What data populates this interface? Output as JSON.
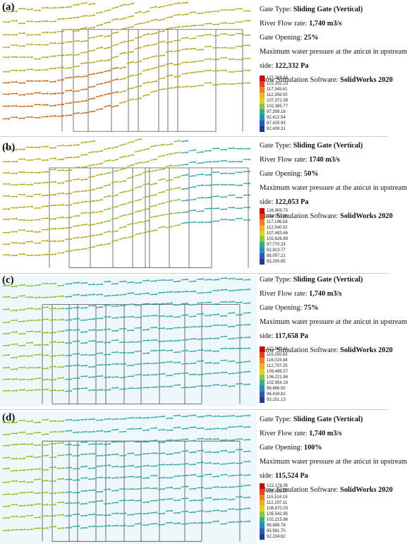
{
  "panels": [
    {
      "letter": "(a)",
      "gate_type_label": "Gate Type: ",
      "gate_type": "Sliding Gate (Vertical)",
      "flow_label": "River Flow rate: ",
      "flow": "1,740 m3/s",
      "opening_label": "Gate Opening: ",
      "opening": "25%",
      "pressure_label_1": "Maximum water pressure at the anicut in upstream",
      "pressure_label_2": "side: ",
      "pressure": "122,332 Pa",
      "software_label": "Flow Simulation Software: ",
      "software": "SolidWorks 2020",
      "legend": [
        "127,318.84",
        "122,332.23",
        "117,345.61",
        "112,359.00",
        "107,372.39",
        "102,385.77",
        "97,399.16",
        "92,412.54",
        "87,425.93",
        "82,439.31"
      ],
      "palette": "warm"
    },
    {
      "letter": "(b)",
      "gate_type_label": "Gate Type: ",
      "gate_type": "Sliding Gate (Vertical)",
      "flow_label": "River Flow rate: ",
      "flow": "1740 m3/s",
      "opening_label": "Gate Opening: ",
      "opening": "50%",
      "pressure_label_1": "Maximum water pressure at the anicut in upstream",
      "pressure_label_2": "side: ",
      "pressure": "122,053 Pa",
      "software_label": "Flow Simulation Software: ",
      "software": "SolidWorks 2020",
      "legend": [
        "126,909.70",
        "122,053.14",
        "117,196.58",
        "112,340.02",
        "107,483.46",
        "102,626.89",
        "97,770.33",
        "92,913.77",
        "88,057.21",
        "83,200.65"
      ],
      "palette": "mid"
    },
    {
      "letter": "(c)",
      "gate_type_label": "Gate Type: ",
      "gate_type": "Sliding Gate (Vertical)",
      "flow_label": "River Flow rate: ",
      "flow": "1,740 m3/s",
      "opening_label": "Gate Opening: ",
      "opening": "75%",
      "pressure_label_1": "Maximum water pressure at the anicut in upstream",
      "pressure_label_2": "side: ",
      "pressure": "117,658 Pa",
      "software_label": "Flow Simulation Software: ",
      "software": "SolidWorks 2020",
      "legend": [
        "122,560.31",
        "119,292.63",
        "116,024.94",
        "112,757.25",
        "109,489.57",
        "106,221.88",
        "102,954.19",
        "99,686.50",
        "96,418.82",
        "93,151.13"
      ],
      "palette": "cool"
    },
    {
      "letter": "(d)",
      "gate_type_label": "Gate Type: ",
      "gate_type": "Sliding Gate (Vertical)",
      "flow_label": "River Flow rate: ",
      "flow": "1,740 m3/s",
      "opening_label": "Gate Opening: ",
      "opening": "100%",
      "pressure_label_1": "Maximum water pressure at the anicut in upstream",
      "pressure_label_2": "side: ",
      "pressure": "115,524 Pa",
      "software_label": "Flow Simulation Software: ",
      "software": "SolidWorks 2020",
      "legend": [
        "122,178.35",
        "118,851.27",
        "115,524.19",
        "112,197.11",
        "108,870.03",
        "105,542.95",
        "102,215.86",
        "98,888.78",
        "95,561.70",
        "92,234.62"
      ],
      "palette": "cool"
    }
  ],
  "legend_colors": [
    "#d40000",
    "#ef3b1a",
    "#f57c1f",
    "#f2b21e",
    "#d8d61e",
    "#86c83a",
    "#29b08c",
    "#1f8fc6",
    "#2e58b8",
    "#243a9a"
  ],
  "colors": {
    "warm_arrow": "#b8a81c",
    "warm_arrow_hot": "#d06a1a",
    "mid_arrow": "#8fbf2a",
    "cool_arrow": "#3aa7a8",
    "structure_line": "#333333"
  }
}
